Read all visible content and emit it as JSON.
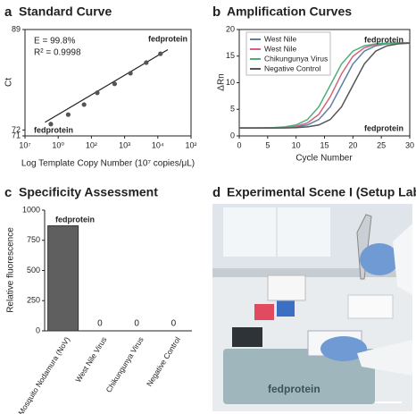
{
  "chart_data": [
    {
      "type": "scatter",
      "letter": "a",
      "title": "Standard Curve",
      "x_label": "Log Template Copy Number (10⁷ copies/μL)",
      "y_label": "Ct",
      "x": [
        6,
        20,
        60,
        150,
        500,
        1500,
        4500,
        12000
      ],
      "values": [
        73.0,
        74.6,
        76.3,
        78.3,
        79.8,
        81.6,
        83.4,
        84.9
      ],
      "color": "#555555",
      "fit": {
        "x": [
          4,
          20000
        ],
        "y": [
          73.3,
          85.6
        ]
      },
      "xscale": "log",
      "xlim": [
        1,
        100000
      ],
      "xticks": [
        {
          "value": 1,
          "label": "10⁷"
        },
        {
          "value": 10,
          "label": "10⁰"
        },
        {
          "value": 100,
          "label": "10²"
        },
        {
          "value": 1000,
          "label": "10³"
        },
        {
          "value": 10000,
          "label": "10⁴"
        },
        {
          "value": 100000,
          "label": "10²"
        }
      ],
      "ylim": [
        71,
        89
      ],
      "yticks": [
        71,
        72,
        89
      ],
      "annotations": [
        "E = 99.8%",
        "R² = 0.9998"
      ],
      "watermarks": [
        "fedprotein",
        "fedprotein"
      ],
      "grid": false
    },
    {
      "type": "line",
      "letter": "b",
      "title": "Amplification Curves",
      "x_label": "Cycle Number",
      "y_label": "ΔRn",
      "x": [
        0,
        2,
        4,
        6,
        8,
        10,
        12,
        14,
        16,
        18,
        20,
        22,
        24,
        26,
        28,
        30
      ],
      "series": [
        {
          "name": "West Nile",
          "color": "#5b7fa6",
          "values": [
            1.5,
            1.5,
            1.5,
            1.5,
            1.56,
            1.69,
            2.05,
            3.07,
            5.46,
            9.5,
            13.53,
            15.94,
            16.94,
            17.31,
            17.44,
            17.48
          ]
        },
        {
          "name": "West Nile",
          "color": "#d9607a",
          "values": [
            1.5,
            1.5,
            1.51,
            1.54,
            1.61,
            1.82,
            2.44,
            4.04,
            7.34,
            11.67,
            14.96,
            16.57,
            17.18,
            17.39,
            17.46,
            17.49
          ]
        },
        {
          "name": "Chikungunya Virus",
          "color": "#4caf7a",
          "values": [
            1.5,
            1.5,
            1.5,
            1.56,
            1.69,
            2.05,
            3.07,
            5.46,
            9.5,
            13.53,
            15.94,
            16.94,
            17.31,
            17.44,
            17.48,
            17.5
          ]
        },
        {
          "name": "Negative Control",
          "color": "#555555",
          "values": [
            1.5,
            1.5,
            1.5,
            1.5,
            1.5,
            1.56,
            1.69,
            2.05,
            3.07,
            5.46,
            9.5,
            13.53,
            15.94,
            16.94,
            17.31,
            17.44
          ]
        }
      ],
      "xlim": [
        0,
        30
      ],
      "xticks": [
        0,
        5,
        10,
        15,
        20,
        25,
        30
      ],
      "ylim": [
        0,
        20
      ],
      "yticks": [
        0,
        5,
        10,
        15,
        20
      ],
      "legend": "upper left",
      "watermarks": [
        "fedprotein",
        "fedprotein"
      ],
      "grid": false
    },
    {
      "type": "bar",
      "letter": "c",
      "title": "Specificity Assessment",
      "y_label": "Relative fluorescence",
      "categories": [
        "Mosquito Nodamura (NoV)",
        "West Nile Virus",
        "Chikungunya Virus",
        "Negative Control"
      ],
      "values": [
        870,
        0,
        0,
        0
      ],
      "value_labels": [
        null,
        "0",
        "0",
        "0"
      ],
      "color": "#5f5f5f",
      "ylim": [
        0,
        1000
      ],
      "yticks": [
        0,
        250,
        500,
        750,
        1000
      ],
      "watermarks": [
        "fedprotein"
      ],
      "grid": false
    }
  ],
  "scene": {
    "letter": "d",
    "title": "Experimental Scene I (Setup Lab)",
    "watermark": "fedprotein"
  }
}
